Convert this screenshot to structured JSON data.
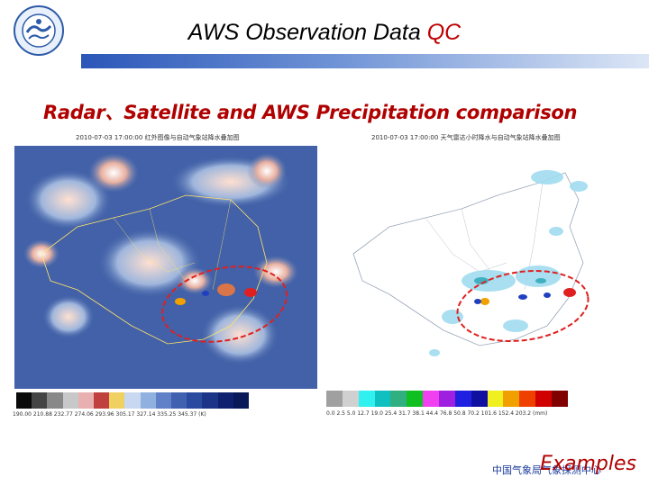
{
  "header": {
    "title_main": "AWS Observation Data ",
    "title_accent": "QC",
    "subtitle": "Radar、Satellite and AWS Precipitation comparison"
  },
  "panels": {
    "left": {
      "caption": "2010-07-03 17:00:00 红外图像与自动气象站降水叠加图",
      "legend_ticks": "190.00  210.88  232.77  274.06  293.96  305.17  327.14  335.25  345.37 (K)"
    },
    "right": {
      "caption": "2010-07-03 17:00:00 天气雷达小时降水与自动气象站降水叠加图",
      "legend_ticks": "0.0  2.5  5.0  12.7  19.0  25.4  31.7  38.1  44.4  76.8  50.8  70.2  101.6  152.4  203.2 (mm)"
    }
  },
  "footer": {
    "org": "中国气象局气象探测中心",
    "label": "Examples"
  },
  "colors": {
    "accent": "#c00000",
    "rule": "#2a56b8"
  }
}
